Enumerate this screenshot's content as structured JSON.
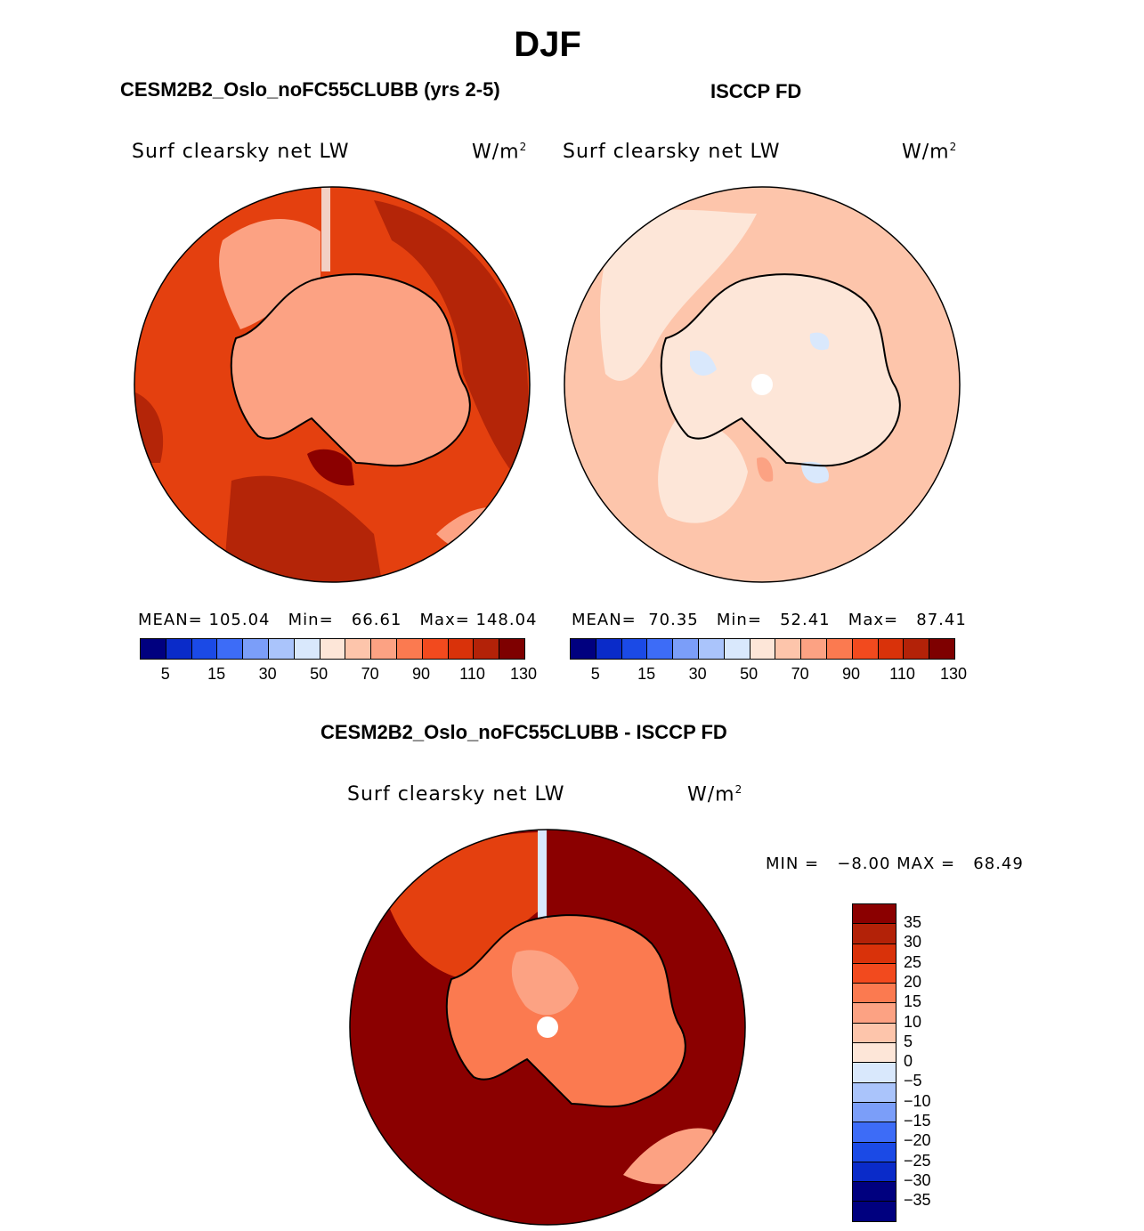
{
  "page": {
    "season": "DJF",
    "left_title": "CESM2B2_Oslo_noFC55CLUBB (yrs 2-5)",
    "right_title": "ISCCP FD",
    "diff_title": "CESM2B2_Oslo_noFC55CLUBB - ISCCP FD"
  },
  "panels": {
    "model": {
      "variable": "Surf clearsky net LW",
      "units": "W/m",
      "units_exp": "2",
      "stats": "MEAN= 105.04   Min=   66.61   Max= 148.04",
      "mean": 105.04,
      "min": 66.61,
      "max": 148.04
    },
    "obs": {
      "variable": "Surf clearsky net LW",
      "units": "W/m",
      "units_exp": "2",
      "stats": "MEAN=  70.35   Min=   52.41   Max=   87.41",
      "mean": 70.35,
      "min": 52.41,
      "max": 87.41
    },
    "diff": {
      "variable": "Surf clearsky net LW",
      "units": "W/m",
      "units_exp": "2",
      "minmax": "MIN =   −8.00 MAX =   68.49",
      "min": -8.0,
      "max": 68.49
    }
  },
  "colorbar_main": {
    "tick_labels": [
      "5",
      "15",
      "30",
      "50",
      "70",
      "90",
      "110",
      "130"
    ],
    "colors": [
      "#00007f",
      "#0a2bc9",
      "#1b4ae6",
      "#3d6cf7",
      "#7b9ef9",
      "#aac4fb",
      "#d9e8fc",
      "#fde6d8",
      "#fdc5ab",
      "#fca283",
      "#fb7a50",
      "#f24a1e",
      "#d9320a",
      "#b32208",
      "#7e0000"
    ]
  },
  "colorbar_diff": {
    "tick_labels": [
      "35",
      "30",
      "25",
      "20",
      "15",
      "10",
      "5",
      "0",
      "−5",
      "−10",
      "−15",
      "−20",
      "−25",
      "−30",
      "−35"
    ],
    "colors": [
      "#8b0000",
      "#b32208",
      "#d9320a",
      "#f24a1e",
      "#fb7a50",
      "#fca283",
      "#fdc5ab",
      "#fde6d8",
      "#d9e8fc",
      "#aac4fb",
      "#7b9ef9",
      "#3d6cf7",
      "#1b4ae6",
      "#0a2bc9",
      "#00007f"
    ]
  },
  "map_colors": {
    "ocean_model": "#e4400f",
    "ocean_model_dark": "#b42508",
    "land_model": "#fca283",
    "ocean_obs": "#fdc5ab",
    "land_obs": "#fde6d8",
    "obs_blue": "#d9e8fc",
    "diff_ocean": "#8b0000",
    "diff_mid": "#e4400f",
    "diff_land": "#fb7a50",
    "diff_light": "#fca283"
  }
}
